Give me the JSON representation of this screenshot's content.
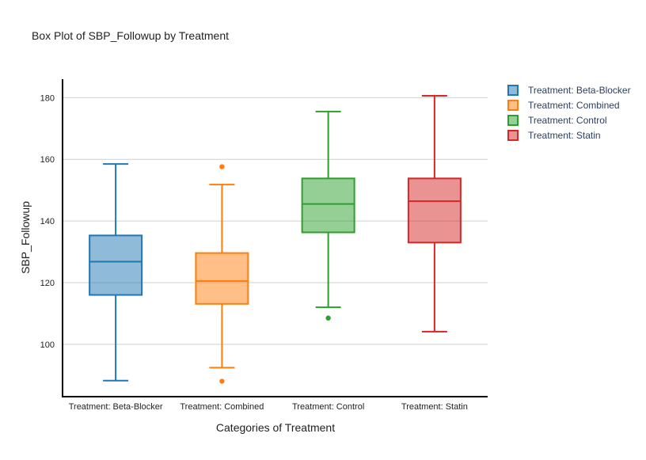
{
  "chart_data": {
    "type": "box",
    "title": "Box Plot of SBP_Followup by Treatment",
    "xlabel": "Categories of Treatment",
    "ylabel": "SBP_Followup",
    "ylim": [
      83,
      186
    ],
    "yticks": [
      100,
      120,
      140,
      160,
      180
    ],
    "grid": true,
    "legend_position": "top-right",
    "categories": [
      "Treatment: Beta-Blocker",
      "Treatment: Combined",
      "Treatment: Control",
      "Treatment: Statin"
    ],
    "series": [
      {
        "name": "Treatment: Beta-Blocker",
        "color": "#1f77b4",
        "min": 88.2,
        "q1": 116.0,
        "median": 126.8,
        "q3": 135.3,
        "max": 158.5,
        "outliers": []
      },
      {
        "name": "Treatment: Combined",
        "color": "#ff7f0e",
        "min": 92.4,
        "q1": 113.1,
        "median": 120.5,
        "q3": 129.6,
        "max": 151.8,
        "outliers": [
          157.6,
          88.0
        ]
      },
      {
        "name": "Treatment: Control",
        "color": "#2ca02c",
        "min": 112.0,
        "q1": 136.3,
        "median": 145.5,
        "q3": 153.8,
        "max": 175.5,
        "outliers": [
          108.5
        ]
      },
      {
        "name": "Treatment: Statin",
        "color": "#d62728",
        "min": 104.1,
        "q1": 133.0,
        "median": 146.4,
        "q3": 153.8,
        "max": 180.6,
        "outliers": []
      }
    ]
  }
}
